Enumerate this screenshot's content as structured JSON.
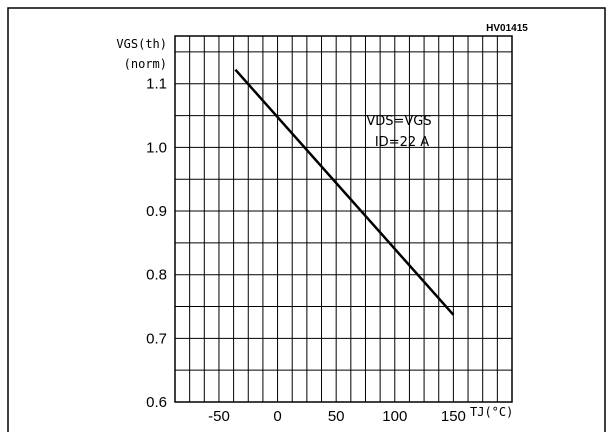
{
  "chart_data": {
    "type": "line",
    "figure_code": "HV01415",
    "ylabel_top": "VGS(th)",
    "ylabel_bottom": "(norm)",
    "xlabel": "TJ(°C)",
    "annotation": [
      "VDS=VGS",
      "ID=22 A"
    ],
    "xlim": [
      -87.5,
      200
    ],
    "ylim": [
      0.6,
      1.175
    ],
    "x_ticks": [
      -50,
      0,
      50,
      100,
      150
    ],
    "x_tick_labels": [
      "-50",
      "0",
      "50",
      "100",
      "150"
    ],
    "y_ticks": [
      0.6,
      0.7,
      0.8,
      0.9,
      1.0,
      1.1
    ],
    "y_tick_labels": [
      "0.6",
      "0.7",
      "0.8",
      "0.9",
      "1.0",
      "1.1"
    ],
    "grid": true,
    "series": [
      {
        "x": [
          -36,
          150
        ],
        "y": [
          1.122,
          0.737
        ]
      }
    ]
  }
}
